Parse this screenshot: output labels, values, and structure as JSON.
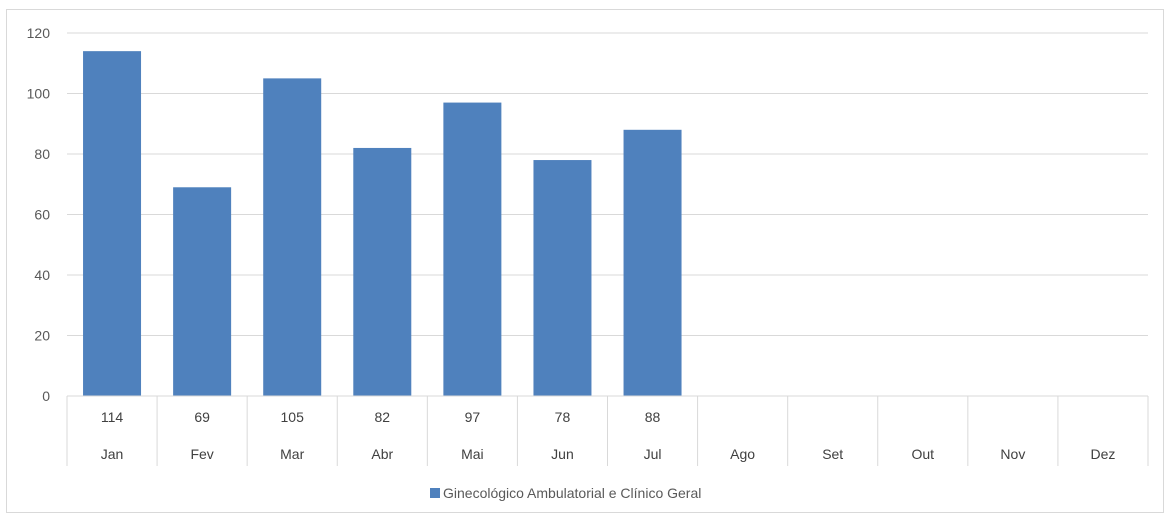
{
  "chart_data": {
    "type": "bar",
    "categories": [
      "Jan",
      "Fev",
      "Mar",
      "Abr",
      "Mai",
      "Jun",
      "Jul",
      "Ago",
      "Set",
      "Out",
      "Nov",
      "Dez"
    ],
    "series": [
      {
        "name": "Ginecológico Ambulatorial e Clínico Geral",
        "values": [
          114,
          69,
          105,
          82,
          97,
          78,
          88,
          null,
          null,
          null,
          null,
          null
        ],
        "color": "#4f81bd"
      }
    ],
    "y_ticks": [
      "0",
      "20",
      "40",
      "60",
      "80",
      "100",
      "120"
    ],
    "ylim": [
      0,
      120
    ],
    "grid": true,
    "data_table": true,
    "legend_position": "bottom"
  }
}
